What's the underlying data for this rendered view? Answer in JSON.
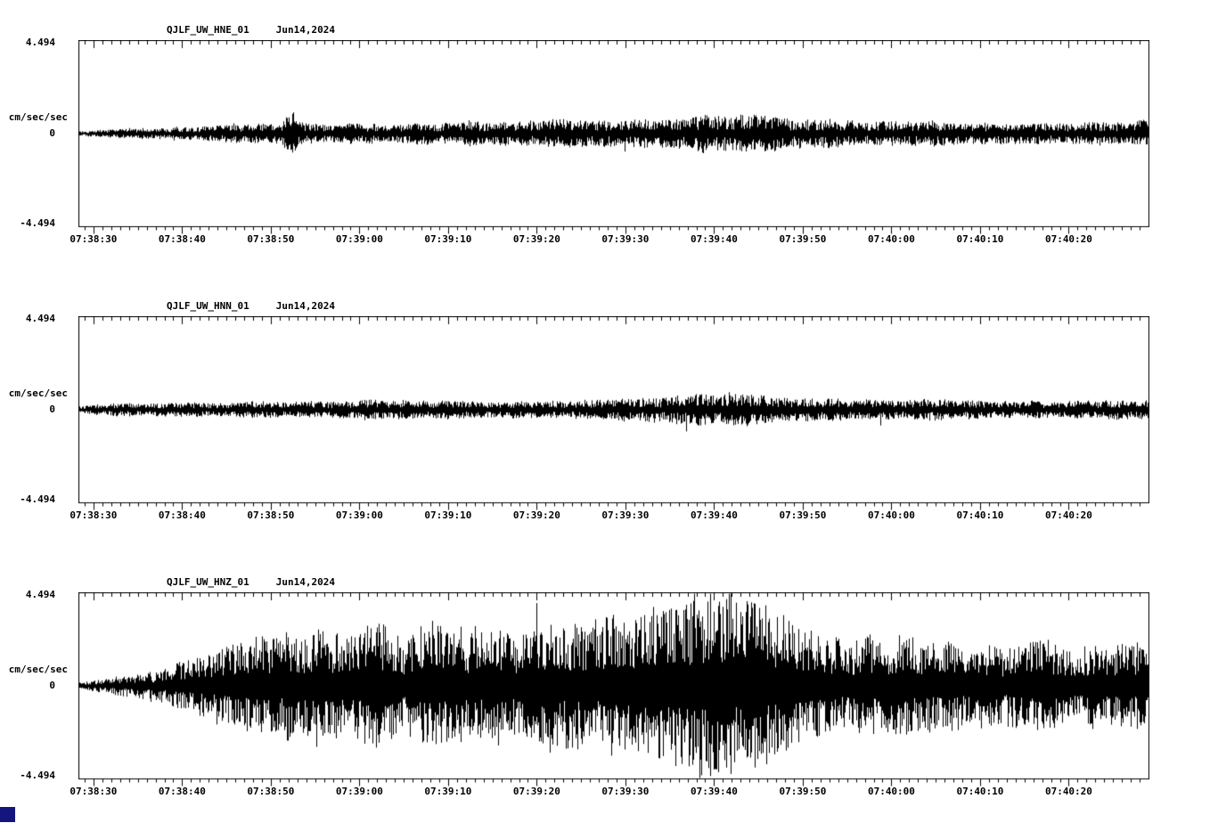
{
  "page": {
    "background": "#ffffff",
    "foreground": "#000000"
  },
  "misc": {
    "corner_square_color": "#15157e"
  },
  "chart_data": [
    {
      "type": "line",
      "kind": "seismogram-trace",
      "title": "QJLF_UW_HNE_01",
      "date": "Jun14,2024",
      "ylabel": "cm/sec/sec",
      "yticks": [
        "4.494",
        "0",
        "-4.494"
      ],
      "ylim": [
        -4.494,
        4.494
      ],
      "x_tick_labels": [
        "07:38:30",
        "07:38:40",
        "07:38:50",
        "07:39:00",
        "07:39:10",
        "07:39:20",
        "07:39:30",
        "07:39:40",
        "07:39:50",
        "07:40:00",
        "07:40:10",
        "07:40:20"
      ],
      "x_span_seconds": 120.8,
      "x_first_tick_offset_s": 1.7,
      "x_major_interval_s": 10,
      "x_minor_interval_s": 1,
      "x_first_minor_offset_s": 0.7,
      "x_major_phase": 1,
      "grid": false,
      "seed": 101,
      "noise": {
        "floor": 0.2,
        "exp": 0.85,
        "spike_prob": 0.004,
        "spike_gain": 1.6
      },
      "envelope": {
        "t": [
          0,
          3,
          10,
          20,
          23,
          24,
          25,
          30,
          40,
          50,
          55,
          60,
          65,
          70,
          75,
          80,
          85,
          90,
          95,
          100,
          105,
          110,
          115,
          121
        ],
        "a": [
          0.15,
          0.2,
          0.3,
          0.45,
          0.5,
          1.25,
          0.5,
          0.45,
          0.5,
          0.6,
          0.65,
          0.7,
          0.75,
          0.8,
          0.8,
          0.75,
          0.65,
          0.6,
          0.6,
          0.55,
          0.5,
          0.5,
          0.55,
          0.6
        ]
      }
    },
    {
      "type": "line",
      "kind": "seismogram-trace",
      "title": "QJLF_UW_HNN_01",
      "date": "Jun14,2024",
      "ylabel": "cm/sec/sec",
      "yticks": [
        "4.494",
        "0",
        "-4.494"
      ],
      "ylim": [
        -4.494,
        4.494
      ],
      "x_tick_labels": [
        "07:38:30",
        "07:38:40",
        "07:38:50",
        "07:39:00",
        "07:39:10",
        "07:39:20",
        "07:39:30",
        "07:39:40",
        "07:39:50",
        "07:40:00",
        "07:40:10",
        "07:40:20"
      ],
      "x_span_seconds": 120.8,
      "x_first_tick_offset_s": 1.7,
      "x_major_interval_s": 10,
      "x_minor_interval_s": 1,
      "x_first_minor_offset_s": 0.7,
      "x_major_phase": 1,
      "grid": false,
      "seed": 202,
      "noise": {
        "floor": 0.2,
        "exp": 0.85,
        "spike_prob": 0.004,
        "spike_gain": 1.6
      },
      "envelope": {
        "t": [
          0,
          5,
          15,
          25,
          30,
          35,
          45,
          55,
          60,
          64,
          68,
          72,
          76,
          80,
          85,
          90,
          95,
          100,
          105,
          110,
          115,
          121
        ],
        "a": [
          0.2,
          0.3,
          0.35,
          0.4,
          0.45,
          0.5,
          0.45,
          0.45,
          0.5,
          0.6,
          0.7,
          0.75,
          0.7,
          0.6,
          0.5,
          0.45,
          0.5,
          0.45,
          0.4,
          0.4,
          0.4,
          0.45
        ]
      }
    },
    {
      "type": "line",
      "kind": "seismogram-trace",
      "title": "QJLF_UW_HNZ_01",
      "date": "Jun14,2024",
      "ylabel": "cm/sec/sec",
      "yticks": [
        "4.494",
        "0",
        "-4.494"
      ],
      "ylim": [
        -4.494,
        4.494
      ],
      "x_tick_labels": [
        "07:38:30",
        "07:38:40",
        "07:38:50",
        "07:39:00",
        "07:39:10",
        "07:39:20",
        "07:39:30",
        "07:39:40",
        "07:39:50",
        "07:40:00",
        "07:40:10",
        "07:40:20"
      ],
      "x_span_seconds": 120.8,
      "x_first_tick_offset_s": 1.7,
      "x_major_interval_s": 10,
      "x_minor_interval_s": 1,
      "x_first_minor_offset_s": 0.7,
      "x_major_phase": 1,
      "grid": false,
      "seed": 303,
      "noise": {
        "floor": 0.25,
        "exp": 1.1,
        "spike_prob": 0.012,
        "spike_gain": 1.35
      },
      "envelope": {
        "t": [
          0,
          5,
          10,
          15,
          20,
          25,
          30,
          35,
          40,
          45,
          50,
          55,
          60,
          64,
          68,
          72,
          76,
          80,
          84,
          88,
          92,
          96,
          100,
          105,
          110,
          115,
          121
        ],
        "a": [
          0.2,
          0.45,
          0.9,
          1.6,
          2.4,
          2.9,
          2.6,
          2.9,
          2.8,
          3.0,
          2.9,
          3.1,
          3.3,
          3.6,
          4.0,
          4.2,
          3.9,
          3.3,
          2.6,
          2.3,
          2.4,
          2.2,
          2.1,
          2.0,
          2.2,
          1.9,
          2.0
        ]
      }
    }
  ]
}
